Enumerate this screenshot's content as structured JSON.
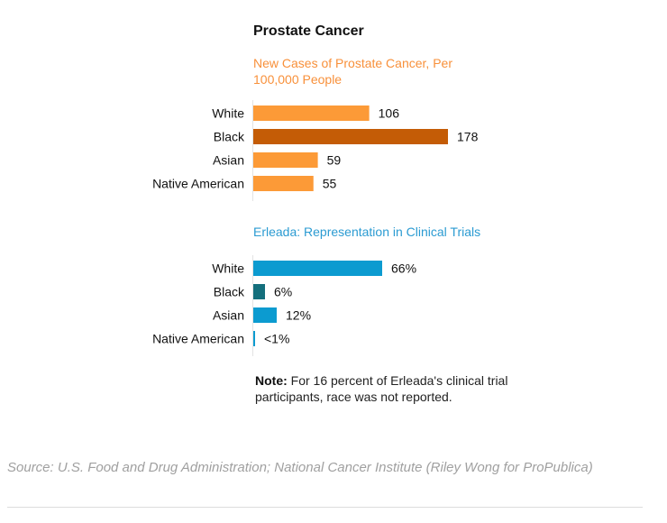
{
  "title": "Prostate Cancer",
  "note_label": "Note:",
  "note_text": " For 16 percent of Erleada's clinical trial participants, race was not reported.",
  "source": "Source: U.S. Food and Drug Administration; National Cancer Institute (Riley Wong for ProPublica)",
  "colors": {
    "orange": "#fc9a37",
    "orange_dark": "#c45c06",
    "blue": "#0c9bd0",
    "teal_dark": "#146f7c",
    "axis": "#e3e3e3",
    "subtitle_orange": "#f8903a",
    "subtitle_blue": "#2b9bd2"
  },
  "chart_data": [
    {
      "type": "bar",
      "orientation": "horizontal",
      "title": "New Cases of Prostate Cancer, Per 100,000 People",
      "categories": [
        "White",
        "Black",
        "Asian",
        "Native American"
      ],
      "values": [
        106,
        178,
        59,
        55
      ],
      "value_labels": [
        "106",
        "178",
        "59",
        "55"
      ],
      "highlight": "Black",
      "xlim": [
        0,
        178
      ],
      "xlabel": "",
      "ylabel": "",
      "grid": false,
      "legend": "none"
    },
    {
      "type": "bar",
      "orientation": "horizontal",
      "title": "Erleada: Representation in Clinical Trials",
      "categories": [
        "White",
        "Black",
        "Asian",
        "Native American"
      ],
      "values": [
        66,
        6,
        12,
        0.5
      ],
      "value_labels": [
        "66%",
        "6%",
        "12%",
        "<1%"
      ],
      "unit": "percent",
      "highlight": "Black",
      "xlim": [
        0,
        100
      ],
      "xlabel": "",
      "ylabel": "",
      "grid": false,
      "legend": "none"
    }
  ]
}
